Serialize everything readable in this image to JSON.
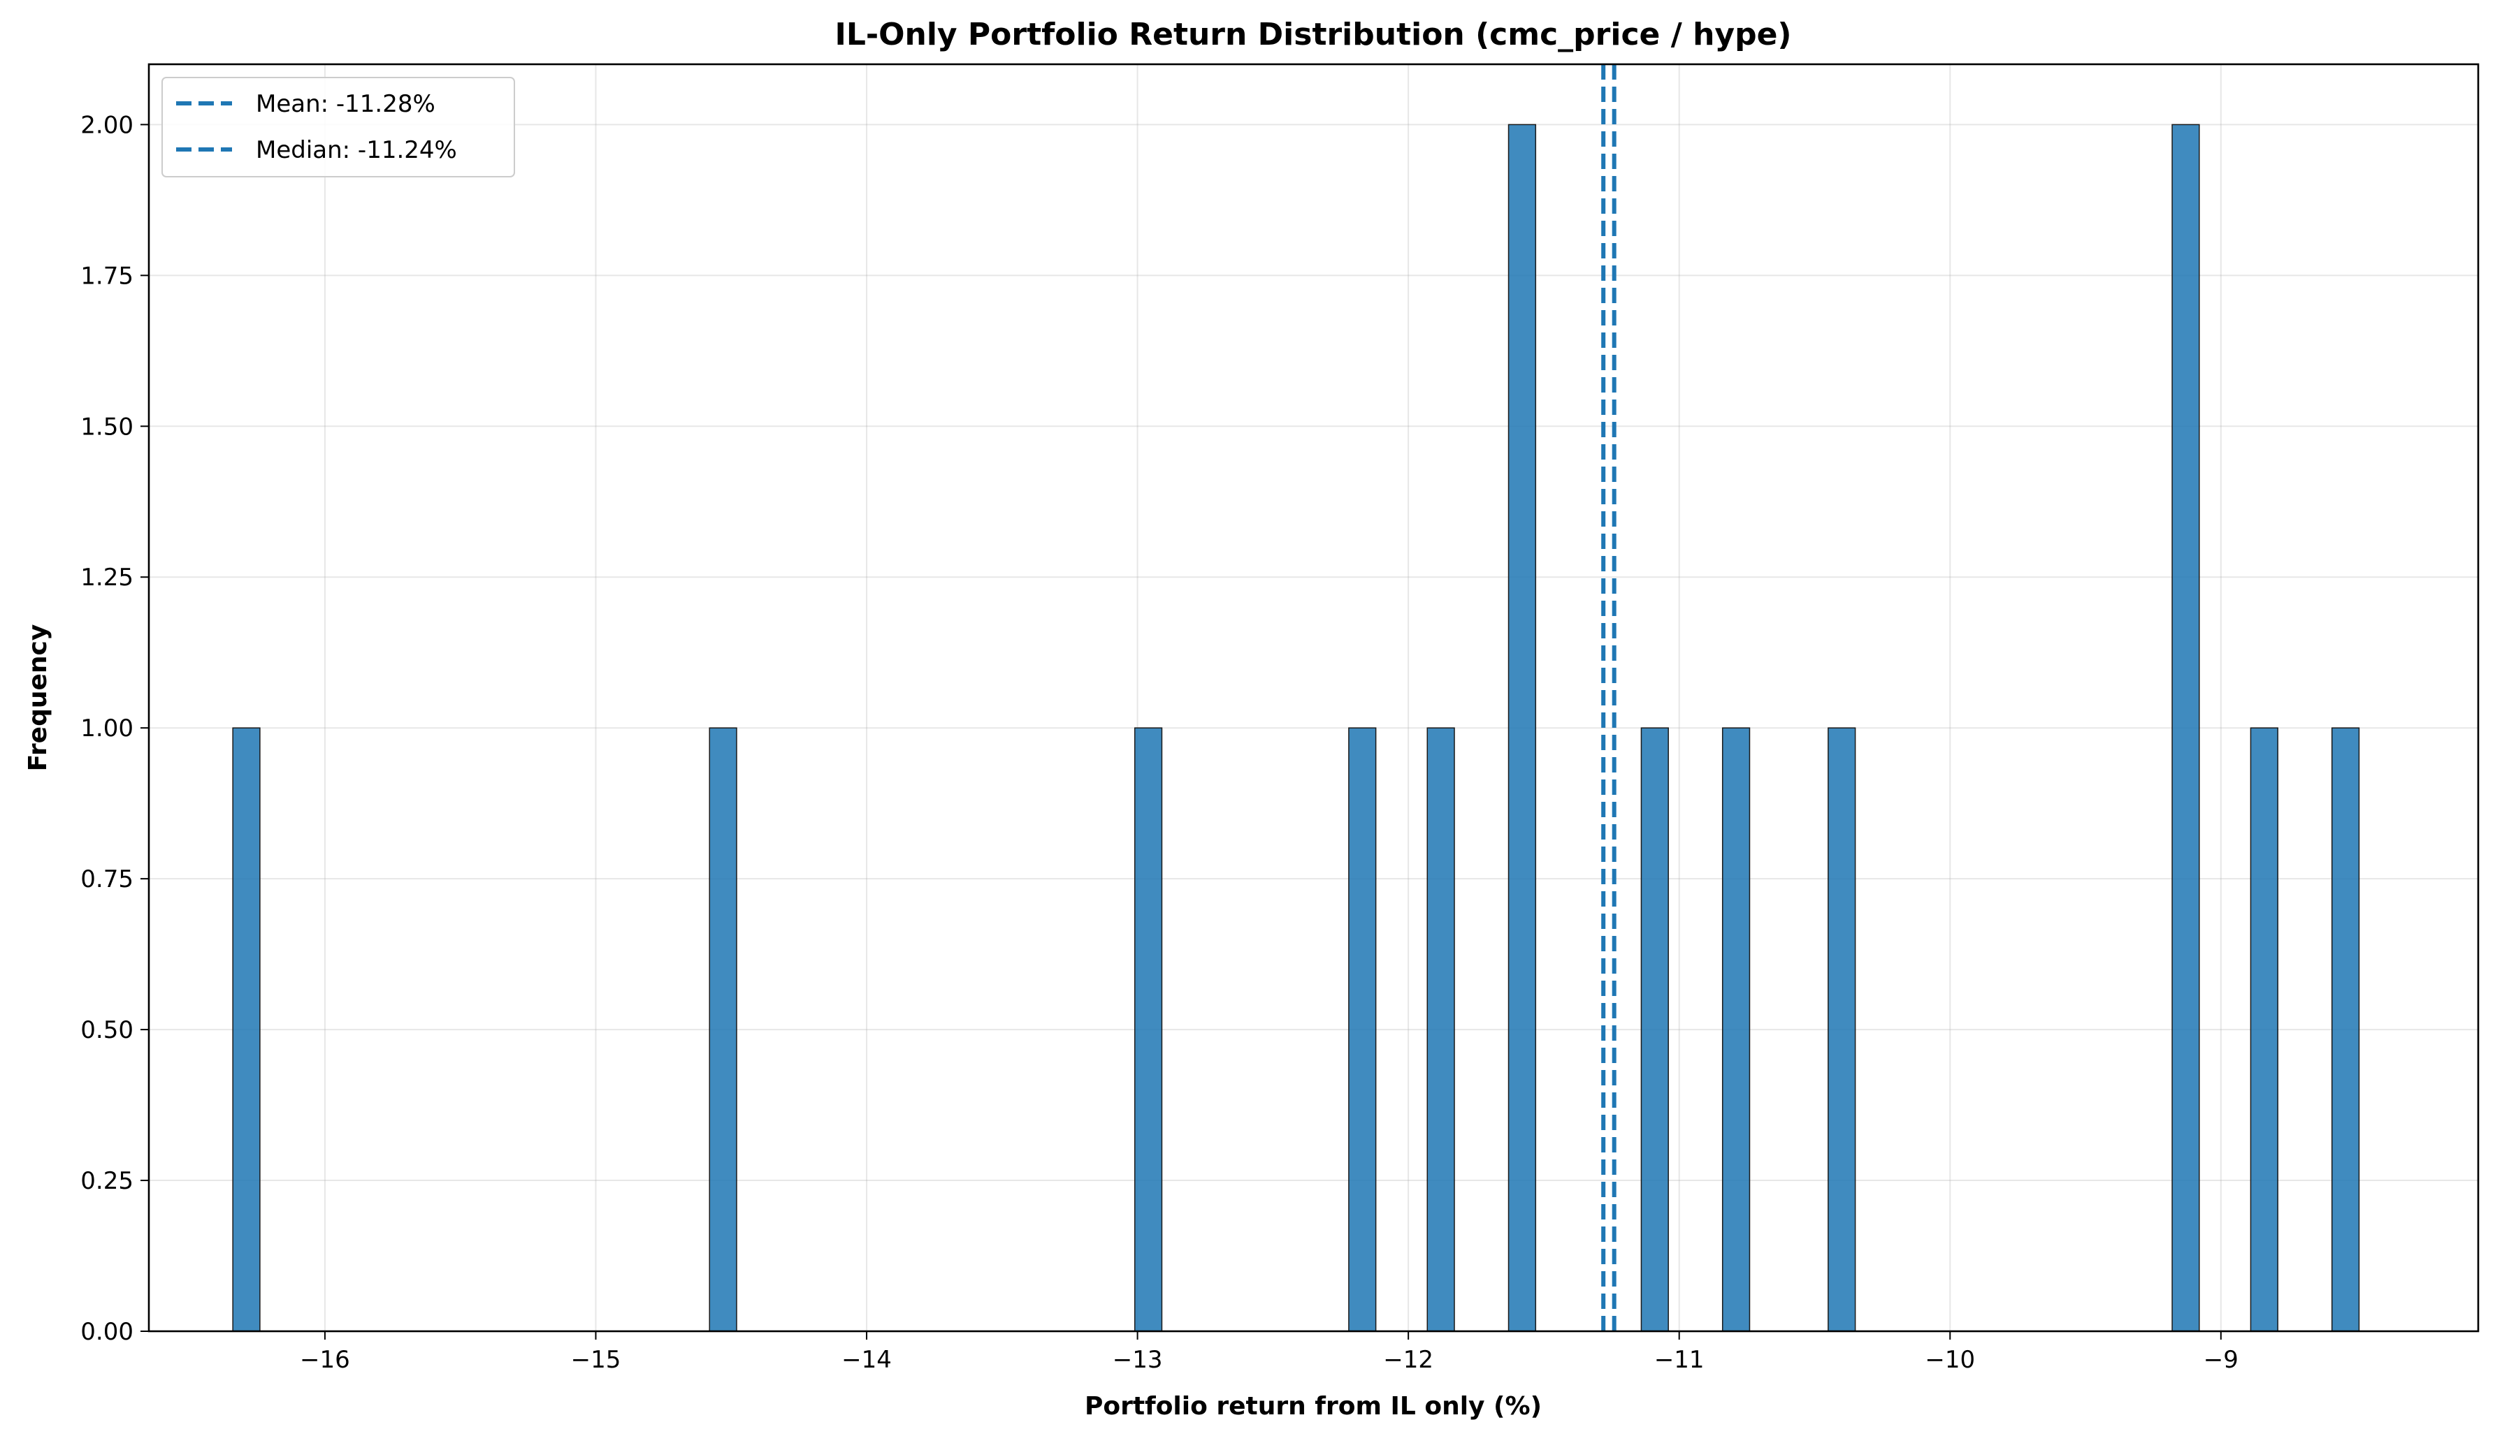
{
  "chart_data": {
    "type": "histogram",
    "title": "IL-Only Portfolio Return Distribution (cmc_price / hype)",
    "xlabel": "Portfolio return from IL only (%)",
    "ylabel": "Frequency",
    "xlim": [
      -16.65,
      -8.05
    ],
    "ylim": [
      0,
      2.1
    ],
    "bin_width": 0.1,
    "xticks": [
      -16,
      -15,
      -14,
      -13,
      -12,
      -11,
      -10,
      -9
    ],
    "xtick_labels": [
      "−16",
      "−15",
      "−14",
      "−13",
      "−12",
      "−11",
      "−10",
      "−9"
    ],
    "yticks": [
      0,
      0.25,
      0.5,
      0.75,
      1.0,
      1.25,
      1.5,
      1.75,
      2.0
    ],
    "ytick_labels": [
      "0.00",
      "0.25",
      "0.50",
      "0.75",
      "1.00",
      "1.25",
      "1.50",
      "1.75",
      "2.00"
    ],
    "grid": true,
    "bar_color": "#1f77b4",
    "bars": [
      {
        "x": -16.29,
        "count": 1
      },
      {
        "x": -14.53,
        "count": 1
      },
      {
        "x": -12.96,
        "count": 1
      },
      {
        "x": -12.17,
        "count": 1
      },
      {
        "x": -11.88,
        "count": 1
      },
      {
        "x": -11.58,
        "count": 2
      },
      {
        "x": -11.09,
        "count": 1
      },
      {
        "x": -10.79,
        "count": 1
      },
      {
        "x": -10.4,
        "count": 1
      },
      {
        "x": -9.13,
        "count": 2
      },
      {
        "x": -8.84,
        "count": 1
      },
      {
        "x": -8.54,
        "count": 1
      }
    ],
    "reference_lines": [
      {
        "name": "Mean",
        "value": -11.28,
        "label": "Mean: -11.28%",
        "color": "#1f77b4",
        "style": "dashed"
      },
      {
        "name": "Median",
        "value": -11.24,
        "label": "Median: -11.24%",
        "color": "#1f77b4",
        "style": "dashed"
      }
    ],
    "legend_position": "top-left"
  }
}
